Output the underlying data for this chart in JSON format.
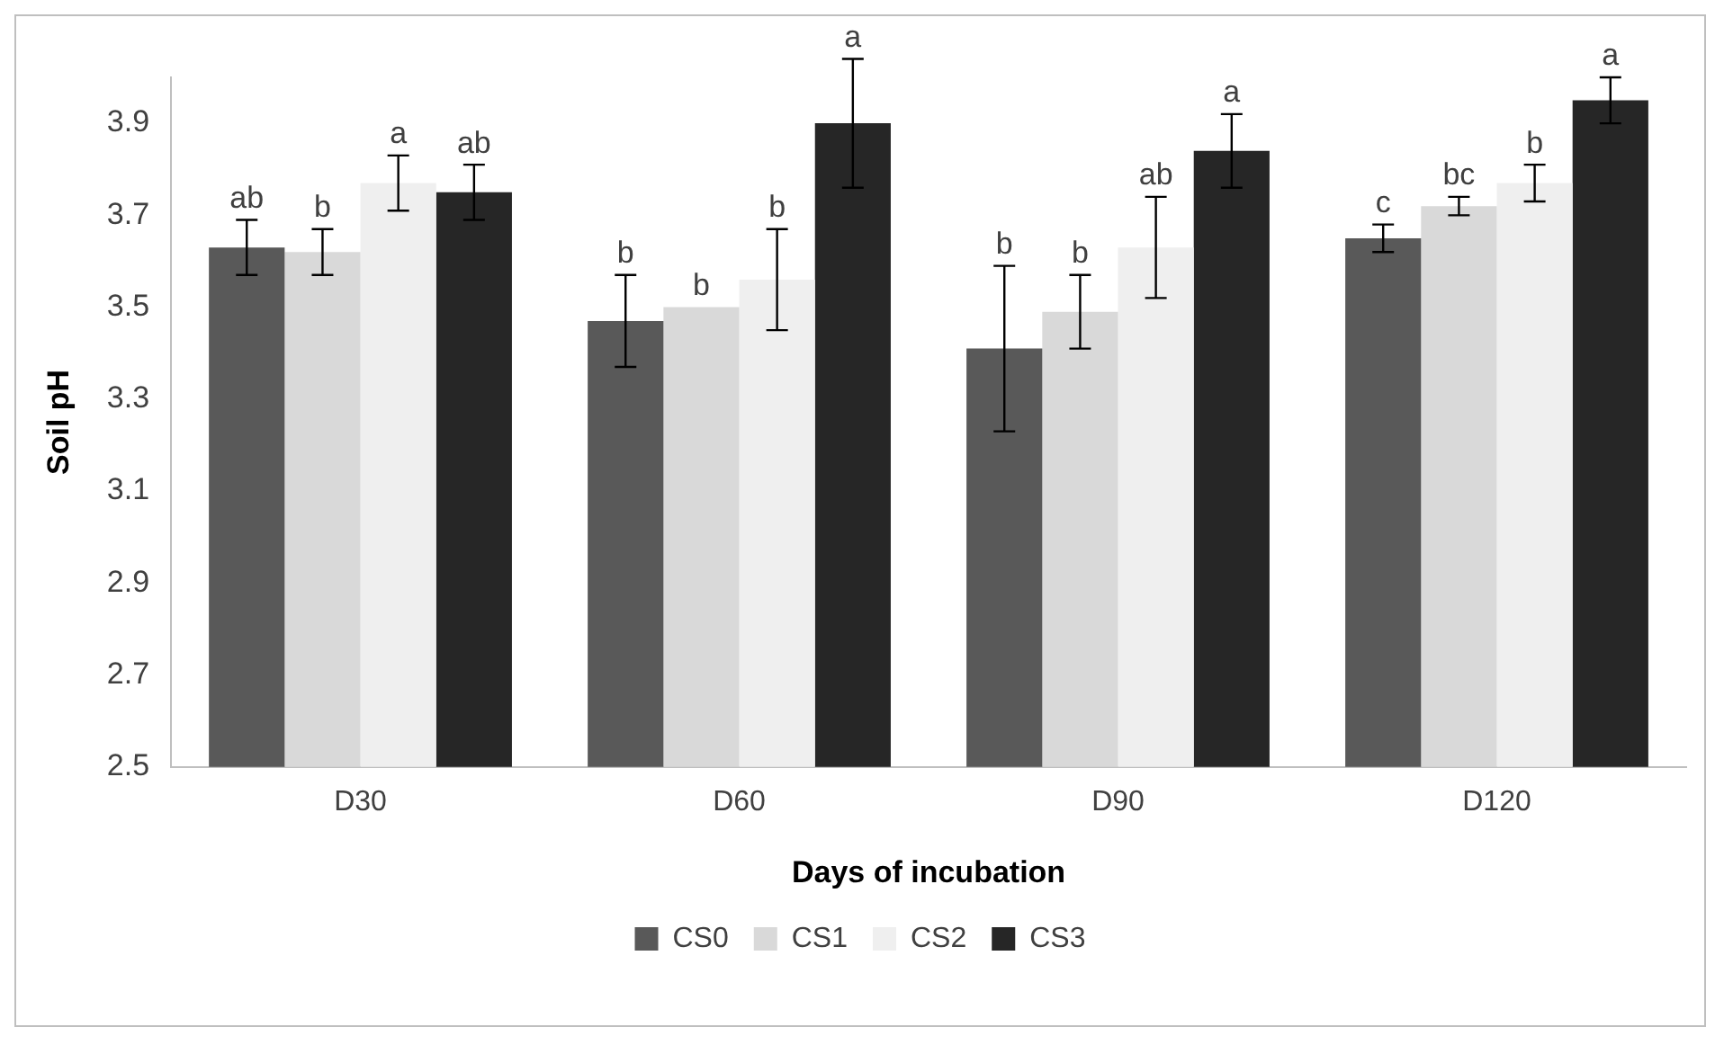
{
  "chart_data": {
    "type": "bar",
    "xlabel": "Days of incubation",
    "ylabel": "Soil pH",
    "categories": [
      "D30",
      "D60",
      "D90",
      "D120"
    ],
    "series": [
      {
        "name": "CS0",
        "color": "#595959",
        "values": [
          3.63,
          3.47,
          3.41,
          3.65
        ],
        "errors": [
          0.06,
          0.1,
          0.18,
          0.03
        ]
      },
      {
        "name": "CS1",
        "color": "#d9d9d9",
        "values": [
          3.62,
          3.5,
          3.49,
          3.72
        ],
        "errors": [
          0.05,
          null,
          0.08,
          0.02
        ]
      },
      {
        "name": "CS2",
        "color": "#efefef",
        "values": [
          3.77,
          3.56,
          3.63,
          3.77
        ],
        "errors": [
          0.06,
          0.11,
          0.11,
          0.04
        ]
      },
      {
        "name": "CS3",
        "color": "#262626",
        "values": [
          3.75,
          3.9,
          3.84,
          3.95
        ],
        "errors": [
          0.06,
          0.14,
          0.08,
          0.05
        ]
      }
    ],
    "ylim": [
      2.5,
      4.0
    ],
    "yticks": [
      2.5,
      2.7,
      2.9,
      3.1,
      3.3,
      3.5,
      3.7,
      3.9
    ],
    "grid": false,
    "legend": "bottom",
    "annotations": [
      "ab",
      "b",
      "a",
      "ab",
      "b",
      "b",
      "b",
      "a",
      "b",
      "b",
      "ab",
      "a",
      "c",
      "bc",
      "b",
      "a"
    ]
  }
}
